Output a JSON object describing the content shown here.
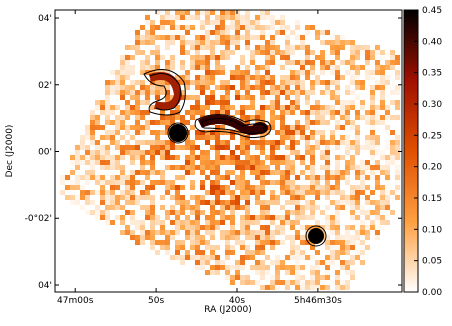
{
  "chart_data": {
    "type": "image",
    "xlabel": "RA (J2000)",
    "ylabel": "Dec (J2000)",
    "xlim": [
      62.5,
      19.6
    ],
    "xticks": [
      {
        "value": 60,
        "label": "47m00s"
      },
      {
        "value": 50,
        "label": "50s"
      },
      {
        "value": 40,
        "label": "40s"
      },
      {
        "value": 30,
        "label": "5h46m30s"
      }
    ],
    "ylim": [
      -4.21,
      4.24
    ],
    "yticks": [
      {
        "value": 4,
        "label": "04'"
      },
      {
        "value": 2,
        "label": "02'"
      },
      {
        "value": 0,
        "label": "00'"
      },
      {
        "value": -2,
        "label": "-0°02'"
      },
      {
        "value": -4,
        "label": "04'"
      }
    ],
    "clim": [
      0,
      0.45
    ],
    "cticks": [
      {
        "value": 0,
        "label": "0.00"
      },
      {
        "value": 0.05,
        "label": "0.05"
      },
      {
        "value": 0.1,
        "label": "0.10"
      },
      {
        "value": 0.15,
        "label": "0.15"
      },
      {
        "value": 0.2,
        "label": "0.20"
      },
      {
        "value": 0.25,
        "label": "0.25"
      },
      {
        "value": 0.3,
        "label": "0.30"
      },
      {
        "value": 0.35,
        "label": "0.35"
      },
      {
        "value": 0.4,
        "label": "0.40"
      },
      {
        "value": 0.45,
        "label": "0.45"
      }
    ],
    "colormap": [
      "#ffffff",
      "#ffa040",
      "#e05000",
      "#a01000",
      "#000000"
    ]
  }
}
